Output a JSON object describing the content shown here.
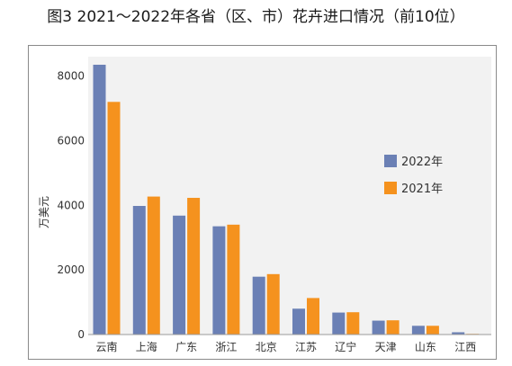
{
  "chart_data": {
    "type": "bar",
    "title": "图3  2021～2022年各省（区、市）花卉进口情况（前10位）",
    "ylabel": "万美元",
    "xlabel": "",
    "categories": [
      "云南",
      "上海",
      "广东",
      "浙江",
      "北京",
      "江苏",
      "辽宁",
      "天津",
      "山东",
      "江西"
    ],
    "series": [
      {
        "name": "2022年",
        "color": "#6b80b5",
        "values": [
          8350,
          3980,
          3680,
          3350,
          1790,
          800,
          680,
          430,
          270,
          70
        ]
      },
      {
        "name": "2021年",
        "color": "#f5921e",
        "values": [
          7200,
          4270,
          4230,
          3400,
          1870,
          1130,
          690,
          440,
          270,
          20
        ]
      }
    ],
    "ylim": [
      0,
      8600
    ],
    "yticks": [
      0,
      2000,
      4000,
      6000,
      8000
    ],
    "grid": false,
    "legend_position": "right"
  }
}
